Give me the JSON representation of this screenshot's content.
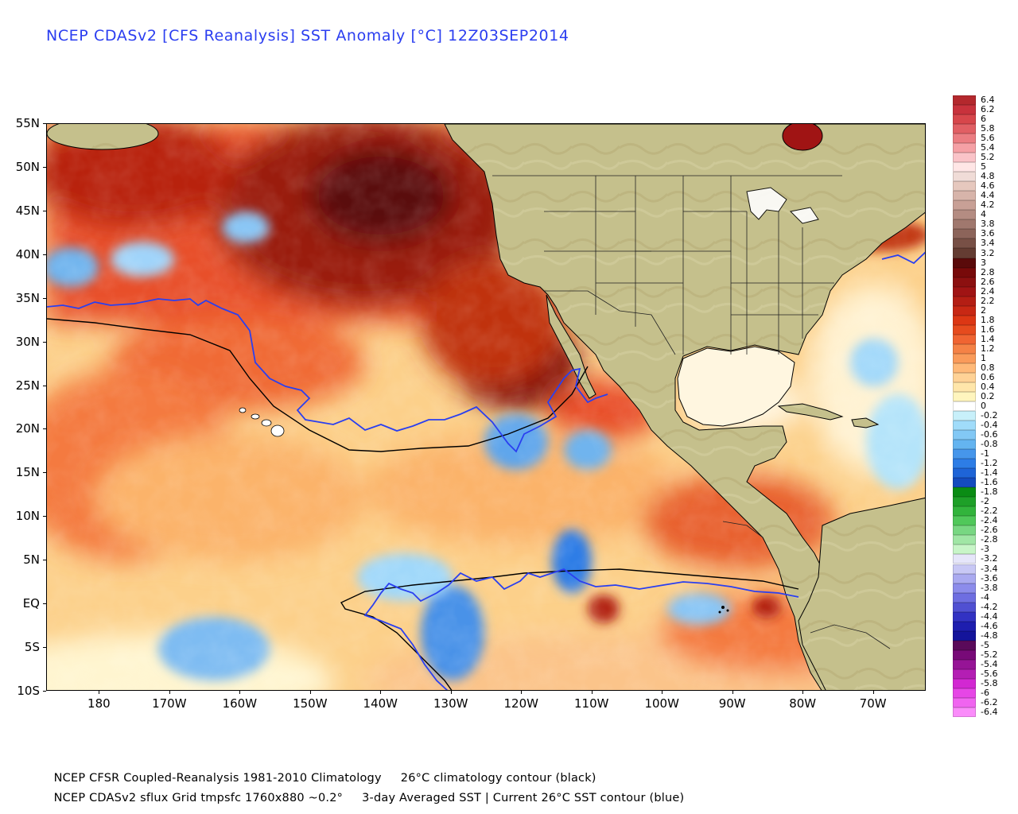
{
  "title": "NCEP CDASv2 [CFS Reanalysis] SST Anomaly [°C] 12Z03SEP2014",
  "map": {
    "lat_labels": [
      "55N",
      "50N",
      "45N",
      "40N",
      "35N",
      "30N",
      "25N",
      "20N",
      "15N",
      "10N",
      "5N",
      "EQ",
      "5S",
      "10S"
    ],
    "lon_labels": [
      "180",
      "170W",
      "160W",
      "150W",
      "140W",
      "130W",
      "120W",
      "110W",
      "100W",
      "90W",
      "80W",
      "70W"
    ],
    "lat_range": [
      -10,
      55
    ],
    "lon_range": [
      -187.5,
      -62.5
    ],
    "land_color": "#c5c08c",
    "climatology_contour_color": "#000000",
    "current_contour_color": "#2a3ff0"
  },
  "colorbar": {
    "levels": [
      "6.4",
      "6.2",
      "6",
      "5.8",
      "5.6",
      "5.4",
      "5.2",
      "5",
      "4.8",
      "4.6",
      "4.4",
      "4.2",
      "4",
      "3.8",
      "3.6",
      "3.4",
      "3.2",
      "3",
      "2.8",
      "2.6",
      "2.4",
      "2.2",
      "2",
      "1.8",
      "1.6",
      "1.4",
      "1.2",
      "1",
      "0.8",
      "0.6",
      "0.4",
      "0.2",
      "0",
      "-0.2",
      "-0.4",
      "-0.6",
      "-0.8",
      "-1",
      "-1.2",
      "-1.4",
      "-1.6",
      "-1.8",
      "-2",
      "-2.2",
      "-2.4",
      "-2.6",
      "-2.8",
      "-3",
      "-3.2",
      "-3.4",
      "-3.6",
      "-3.8",
      "-4",
      "-4.2",
      "-4.4",
      "-4.6",
      "-4.8",
      "-5",
      "-5.2",
      "-5.4",
      "-5.6",
      "-5.8",
      "-6",
      "-6.2",
      "-6.4"
    ],
    "colors": [
      "#b4282d",
      "#c8323c",
      "#d7464b",
      "#e15f64",
      "#eb7d82",
      "#f5a0a5",
      "#fac3c8",
      "#ffe6e6",
      "#f0dcd7",
      "#e6c8be",
      "#d7b4aa",
      "#c8a096",
      "#b48c82",
      "#a0786e",
      "#8c645a",
      "#785046",
      "#643c32",
      "#5a0a0a",
      "#780a0a",
      "#8c1010",
      "#a01414",
      "#b41e14",
      "#c82814",
      "#dc3714",
      "#e64b1e",
      "#f06432",
      "#f58246",
      "#fa9b5a",
      "#ffb978",
      "#ffd296",
      "#ffe6aa",
      "#fff5be",
      "#ffffff",
      "#c8f0fa",
      "#a0dcfa",
      "#82c8f5",
      "#64b4f0",
      "#4696eb",
      "#2d7de6",
      "#1e64d7",
      "#144bbe",
      "#0a8c14",
      "#1ea028",
      "#32b43c",
      "#50c85a",
      "#78d782",
      "#a0e6a5",
      "#c8f5c8",
      "#e6e6fa",
      "#c8c8f5",
      "#aaaaf0",
      "#8c8ceb",
      "#6e6ee1",
      "#5050d2",
      "#3232c3",
      "#1e1eaf",
      "#14149b",
      "#5a0a5a",
      "#780a78",
      "#961496",
      "#b41eb4",
      "#d228d2",
      "#e646e6",
      "#f064f0",
      "#fa8cfa"
    ]
  },
  "footer": {
    "line1_left": "NCEP CFSR Coupled-Reanalysis 1981-2010 Climatology",
    "line1_right": "26°C climatology contour (black)",
    "line2_left": "NCEP CDASv2 sflux Grid tmpsfc 1760x880 ~0.2°",
    "line2_right": "3-day Averaged SST | Current 26°C SST contour (blue)"
  }
}
